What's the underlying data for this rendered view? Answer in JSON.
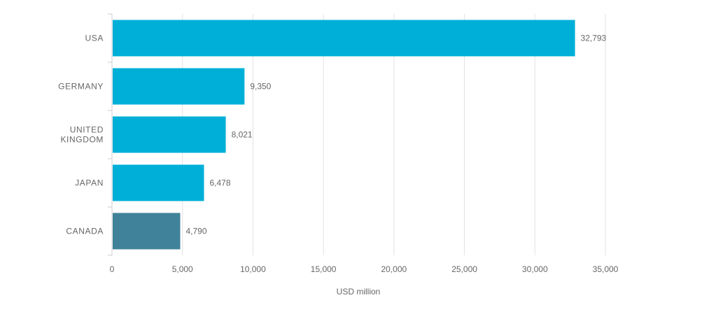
{
  "chart_data": {
    "type": "bar",
    "orientation": "horizontal",
    "categories": [
      [
        "USA"
      ],
      [
        "GERMANY"
      ],
      [
        "UNITED",
        "KINGDOM"
      ],
      [
        "JAPAN"
      ],
      [
        "CANADA"
      ]
    ],
    "values": [
      32793,
      9350,
      8021,
      6478,
      4790
    ],
    "value_labels": [
      "32,793",
      "9,350",
      "8,021",
      "6,478",
      "4,790"
    ],
    "bar_colors": [
      "#00afd8",
      "#00afd8",
      "#00afd8",
      "#00afd8",
      "#3f8299"
    ],
    "xlabel": "USD million",
    "ylabel": "",
    "title": "",
    "xlim": [
      0,
      35000
    ],
    "x_ticks": [
      0,
      5000,
      10000,
      15000,
      20000,
      25000,
      30000,
      35000
    ],
    "x_tick_labels": [
      "0",
      "5,000",
      "10,000",
      "15,000",
      "20,000",
      "25,000",
      "30,000",
      "35,000"
    ],
    "grid": "vertical",
    "legend": "none"
  },
  "colors": {
    "bar": "#00afd8",
    "highlight_bar": "#3f8299",
    "grid": "#e2e2e2",
    "axis": "#cccccc",
    "text": "#666666"
  }
}
